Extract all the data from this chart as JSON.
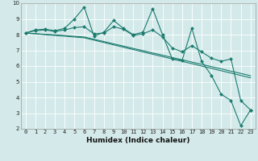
{
  "xlabel": "Humidex (Indice chaleur)",
  "bg_color": "#d4eaea",
  "grid_color": "#b8d8d8",
  "line_color": "#1a7a6e",
  "xlim": [
    -0.5,
    23.5
  ],
  "ylim": [
    2,
    10
  ],
  "yticks": [
    2,
    3,
    4,
    5,
    6,
    7,
    8,
    9,
    10
  ],
  "xtick_labels": [
    "0",
    "1",
    "2",
    "3",
    "4",
    "5",
    "6",
    "7",
    "8",
    "9",
    "10",
    "11",
    "12",
    "13",
    "14",
    "15",
    "16",
    "17",
    "18",
    "19",
    "20",
    "21",
    "22",
    "23"
  ],
  "series": [
    {
      "y": [
        8.1,
        8.3,
        8.35,
        8.25,
        8.4,
        9.0,
        9.75,
        7.9,
        8.15,
        8.9,
        8.4,
        8.0,
        8.15,
        9.65,
        8.0,
        6.45,
        6.35,
        8.4,
        6.3,
        5.4,
        4.2,
        3.8,
        2.2,
        3.2
      ],
      "marker": true
    },
    {
      "y": [
        8.1,
        8.25,
        8.3,
        8.2,
        8.3,
        8.45,
        8.5,
        8.05,
        8.1,
        8.5,
        8.35,
        7.95,
        8.05,
        8.3,
        7.85,
        7.15,
        6.9,
        7.3,
        6.9,
        6.5,
        6.3,
        6.45,
        3.8,
        3.2
      ],
      "marker": true
    },
    {
      "y": [
        8.1,
        8.06,
        8.02,
        7.98,
        7.94,
        7.89,
        7.85,
        7.7,
        7.56,
        7.41,
        7.27,
        7.12,
        6.98,
        6.83,
        6.69,
        6.54,
        6.4,
        6.25,
        6.11,
        5.96,
        5.82,
        5.67,
        5.53,
        5.38
      ],
      "marker": false
    },
    {
      "y": [
        8.1,
        8.05,
        8.0,
        7.95,
        7.9,
        7.85,
        7.8,
        7.65,
        7.5,
        7.35,
        7.2,
        7.05,
        6.9,
        6.75,
        6.6,
        6.45,
        6.3,
        6.15,
        6.0,
        5.85,
        5.7,
        5.55,
        5.4,
        5.25
      ],
      "marker": false
    }
  ],
  "xlabel_fontsize": 6.5,
  "tick_fontsize": 5,
  "linewidth": 0.8,
  "markersize": 2.2
}
